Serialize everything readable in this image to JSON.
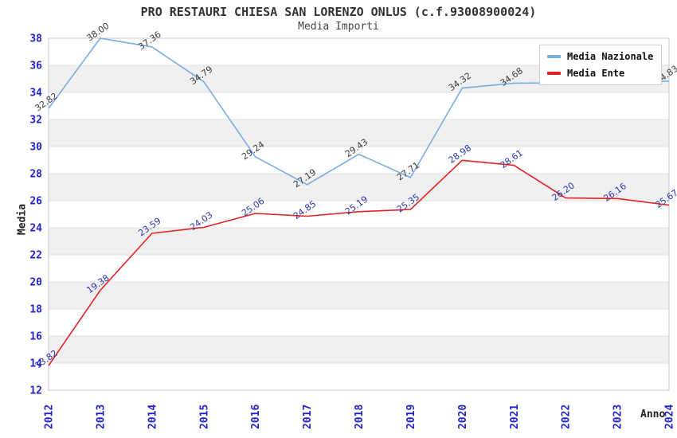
{
  "chart_data": {
    "type": "line",
    "title": "PRO RESTAURI CHIESA SAN LORENZO ONLUS (c.f.93008900024)",
    "subtitle": "Media Importi",
    "xlabel": "Anno",
    "ylabel": "Media",
    "categories": [
      "2012",
      "2013",
      "2014",
      "2015",
      "2016",
      "2017",
      "2018",
      "2019",
      "2020",
      "2021",
      "2022",
      "2023",
      "2024"
    ],
    "series": [
      {
        "name": "Media Nazionale",
        "color": "#77ade3",
        "label_color": "#3c3c3c",
        "values": [
          32.82,
          38.0,
          37.36,
          34.79,
          29.24,
          27.19,
          29.43,
          27.71,
          34.32,
          34.68,
          34.7,
          34.78,
          34.83
        ],
        "labels": [
          "32.82",
          "38.00",
          "37.36",
          "34.79",
          "29.24",
          "27.19",
          "29.43",
          "27.71",
          "34.32",
          "34.68",
          "",
          "",
          "34.83"
        ]
      },
      {
        "name": "Media Ente",
        "color": "#e32222",
        "label_color": "#2a35b0",
        "values": [
          13.82,
          19.38,
          23.59,
          24.03,
          25.06,
          24.85,
          25.19,
          25.35,
          28.98,
          28.61,
          26.2,
          26.16,
          25.67
        ],
        "labels": [
          "13.82",
          "19.38",
          "23.59",
          "24.03",
          "25.06",
          "24.85",
          "25.19",
          "25.35",
          "28.98",
          "28.61",
          "26.20",
          "26.16",
          "25.67"
        ]
      }
    ],
    "ylim": [
      12,
      38
    ],
    "ytick_step": 2,
    "tick_color": "#2323cc",
    "band_color": "#f0f0f0",
    "gridline_color": "#e3e3e3",
    "border_color": "#c9c9c9",
    "legend_position": "top-right",
    "grid": "horizontal-bands"
  }
}
